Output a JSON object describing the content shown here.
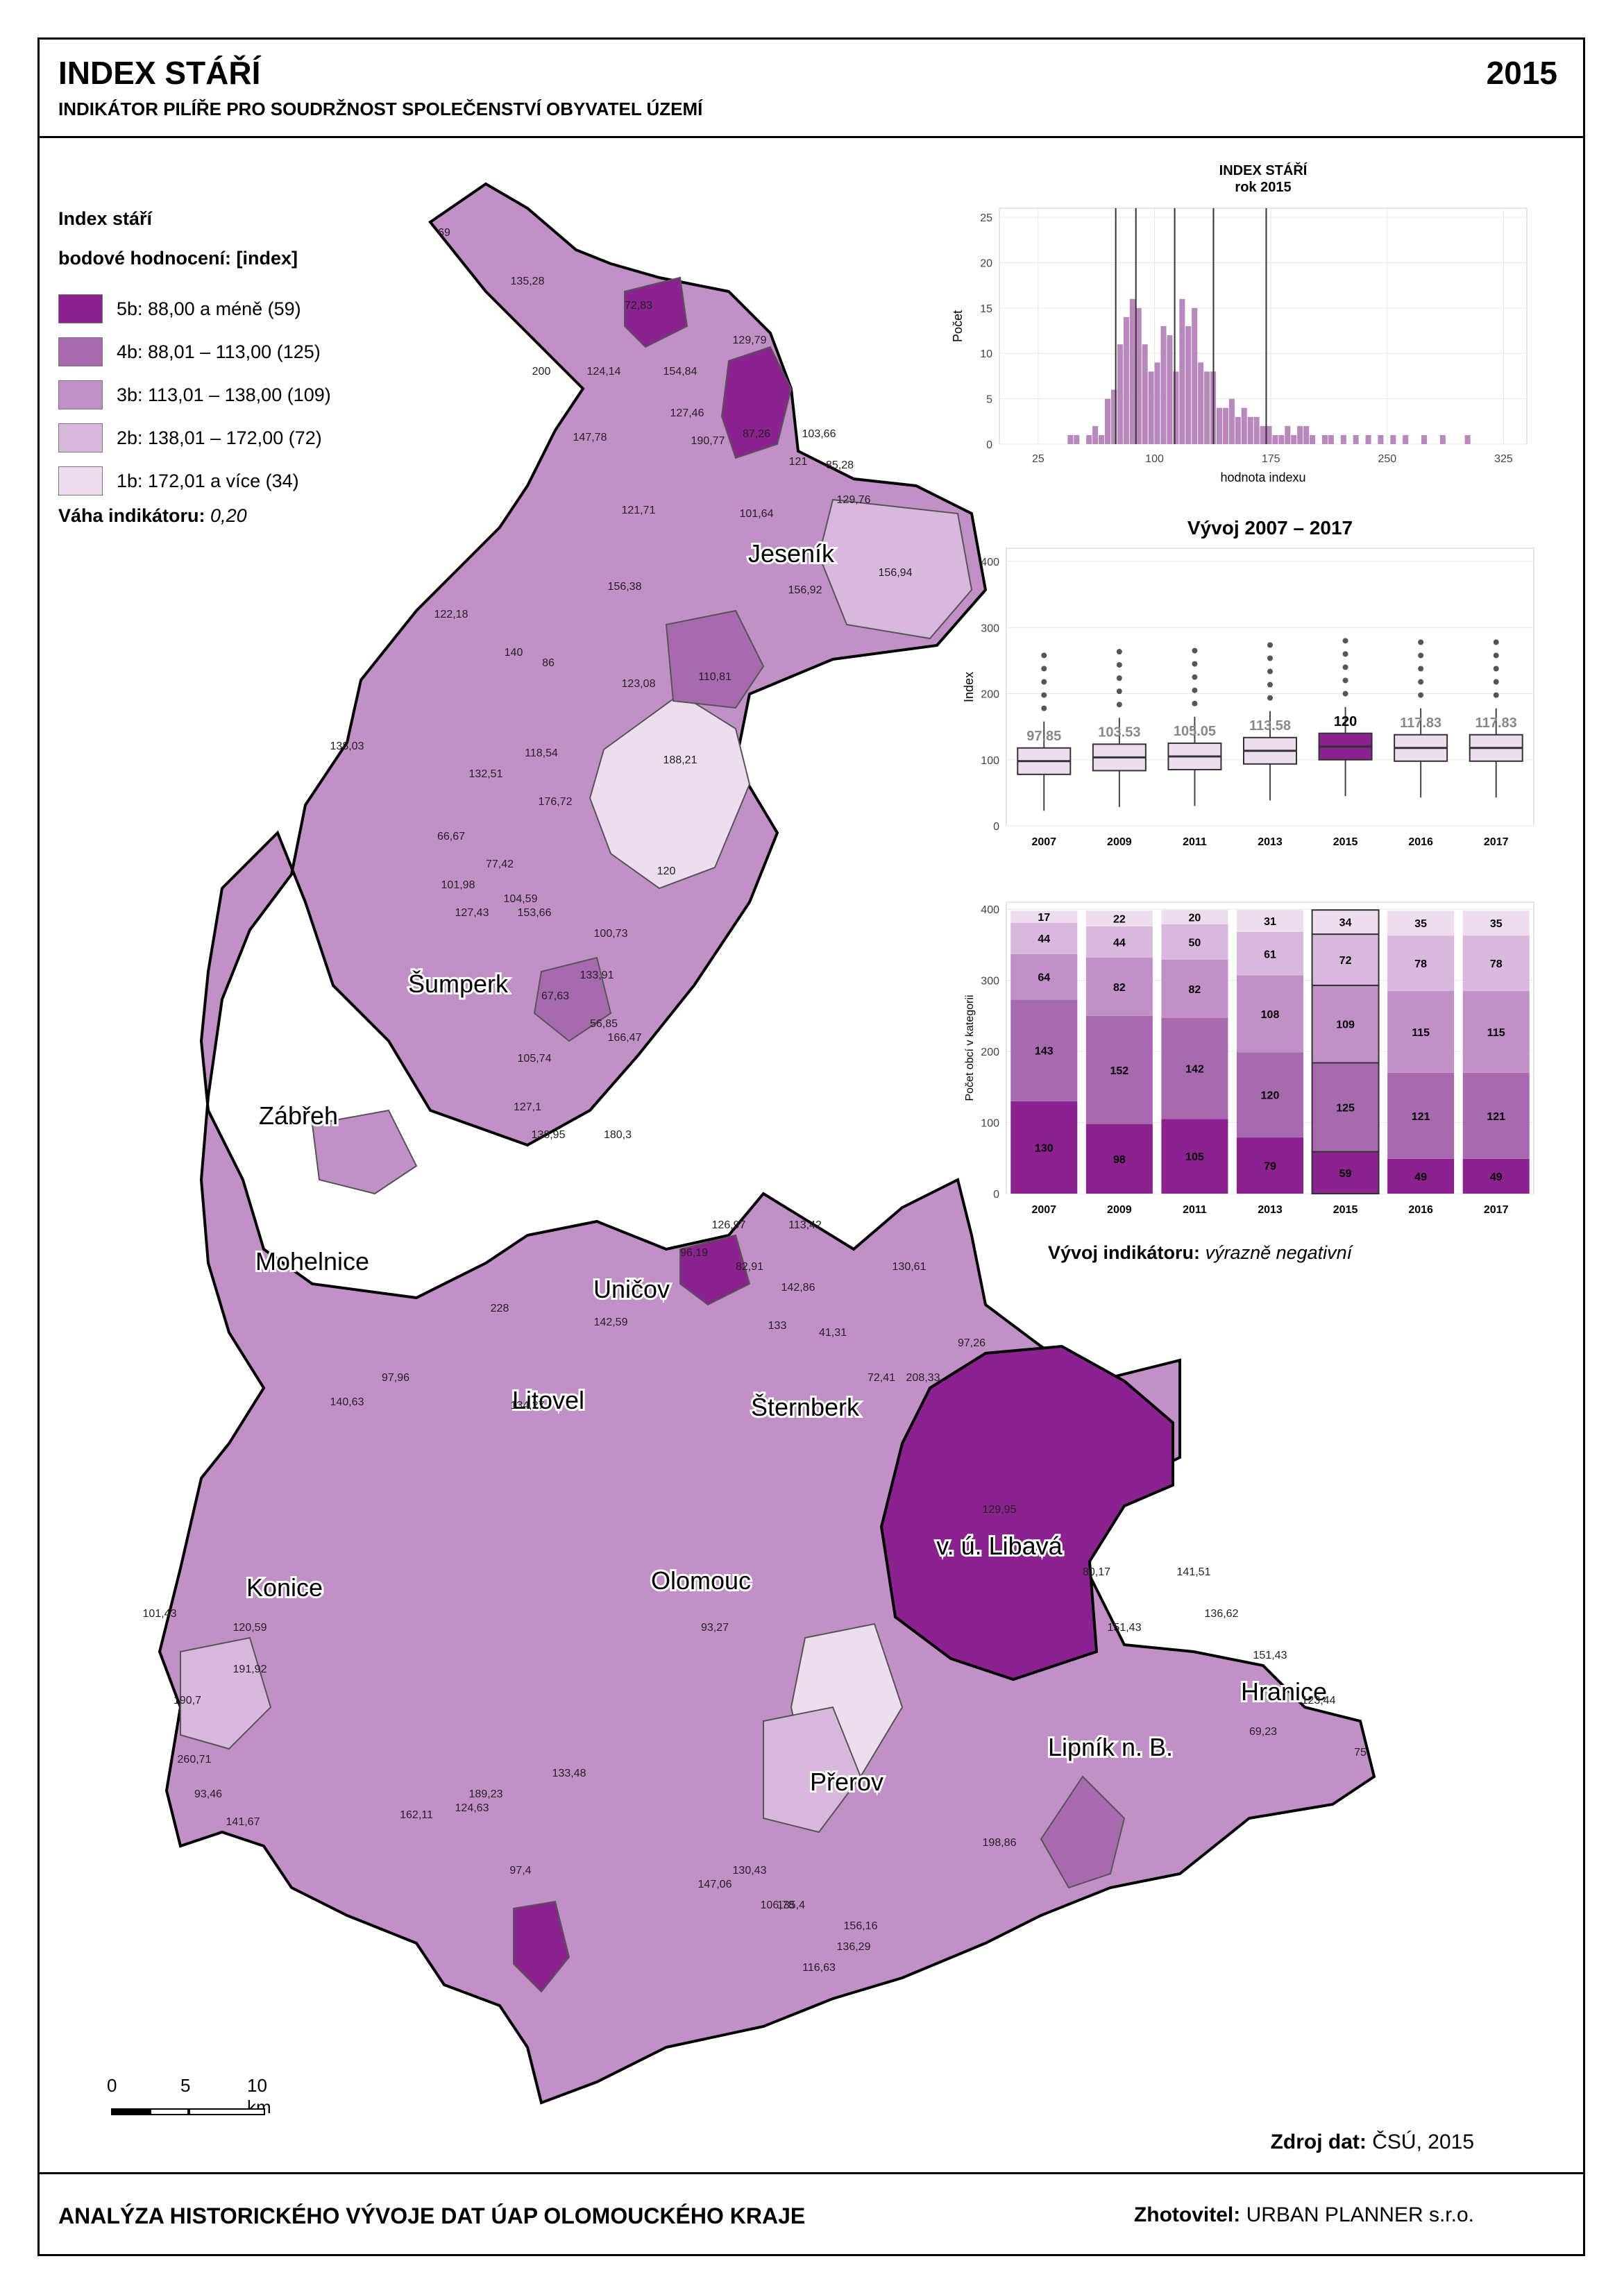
{
  "header": {
    "title": "INDEX STÁŘÍ",
    "year": "2015",
    "subtitle": "INDIKÁTOR PILÍŘE PRO SOUDRŽNOST SPOLEČENSTVÍ OBYVATEL ÚZEMÍ"
  },
  "legend": {
    "title": "Index stáří",
    "subtitle": "bodové hodnocení: [index]",
    "items": [
      {
        "label": "5b: 88,00 a méně (59)",
        "color": "#8b2290"
      },
      {
        "label": "4b: 88,01 – 113,00 (125)",
        "color": "#a86aaf"
      },
      {
        "label": "3b: 113,01 – 138,00 (109)",
        "color": "#c190c6"
      },
      {
        "label": "2b: 138,01 – 172,00 (72)",
        "color": "#d8b8dc"
      },
      {
        "label": "1b: 172,01 a více (34)",
        "color": "#eedcef"
      }
    ],
    "weight_label": "Váha indikátoru:",
    "weight_value": "0,20"
  },
  "map": {
    "town_labels": [
      "Jeseník",
      "Šumperk",
      "Zábřeh",
      "Mohelnice",
      "Uničov",
      "Litovel",
      "Šternberk",
      "Olomouc",
      "v. ú. Libavá",
      "Konice",
      "Přerov",
      "Lipník n. B.",
      "Hranice"
    ],
    "value_labels": [
      "69",
      "135,28",
      "72,83",
      "200",
      "124,14",
      "154,84",
      "129,79",
      "147,78",
      "127,46",
      "190,77",
      "87,26",
      "103,66",
      "121",
      "85,28",
      "129,76",
      "121,71",
      "101,64",
      "156,38",
      "156,92",
      "156,94",
      "122,18",
      "86",
      "140",
      "123,08",
      "110,81",
      "138,03",
      "118,54",
      "188,21",
      "132,51",
      "176,72",
      "120",
      "66,67",
      "77,42",
      "101,98",
      "104,59",
      "127,43",
      "153,66",
      "100,73",
      "133,91",
      "67,63",
      "56,85",
      "166,47",
      "105,74",
      "127,1",
      "138,95",
      "180,3",
      "126,97",
      "113,42",
      "96,19",
      "82,91",
      "142,86",
      "130,61",
      "97,26",
      "228",
      "142,59",
      "133",
      "41,31",
      "72,41",
      "208,33",
      "97,96",
      "140,63",
      "134,27",
      "129,95",
      "80,17",
      "141,51",
      "136,62",
      "151,43",
      "93,27",
      "123,44",
      "69,23",
      "75",
      "101,43",
      "120,59",
      "191,92",
      "190,7",
      "260,71",
      "93,46",
      "141,67",
      "162,11",
      "124,63",
      "189,23",
      "133,48",
      "97,4",
      "136,29",
      "116,63",
      "147,06",
      "106,78",
      "156,16",
      "135,4",
      "130,43",
      "198,86",
      "151,43"
    ],
    "scale": {
      "labels": [
        "0",
        "5",
        "10 km"
      ]
    }
  },
  "histogram": {
    "title": "INDEX STÁŘÍ",
    "subtitle": "rok 2015",
    "xlabel": "hodnota indexu",
    "ylabel": "Počet",
    "x_ticks": [
      "25",
      "100",
      "175",
      "250",
      "325"
    ],
    "y_ticks": [
      "0",
      "5",
      "10",
      "15",
      "20",
      "25"
    ],
    "bar_color": "#b988bd",
    "chart_data": {
      "type": "bar",
      "bin_start": [
        44,
        48,
        56,
        60,
        64,
        68,
        72,
        76,
        80,
        84,
        88,
        92,
        96,
        100,
        104,
        108,
        112,
        116,
        120,
        124,
        128,
        132,
        136,
        140,
        144,
        148,
        152,
        156,
        160,
        164,
        168,
        172,
        176,
        180,
        184,
        188,
        192,
        196,
        200,
        208,
        212,
        220,
        228,
        236,
        244,
        252,
        260,
        272,
        284,
        300
      ],
      "counts": [
        1,
        1,
        1,
        2,
        1,
        5,
        6,
        11,
        14,
        16,
        15,
        11,
        8,
        9,
        13,
        12,
        8,
        16,
        13,
        15,
        9,
        8,
        8,
        4,
        4,
        5,
        3,
        4,
        3,
        3,
        2,
        2,
        1,
        1,
        2,
        1,
        2,
        2,
        1,
        1,
        1,
        1,
        1,
        1,
        1,
        1,
        1,
        1,
        1,
        1
      ],
      "xlim": [
        0,
        340
      ],
      "ylim": [
        0,
        26
      ],
      "vlines": [
        75,
        88,
        113,
        138,
        172
      ]
    }
  },
  "boxplot": {
    "title": "Vývoj 2007 – 2017",
    "ylabel": "Index",
    "y_ticks": [
      "0",
      "100",
      "200",
      "300",
      "400"
    ],
    "chart_data": {
      "type": "box",
      "categories": [
        "2007",
        "2009",
        "2011",
        "2013",
        "2015",
        "2016",
        "2017"
      ],
      "medians": [
        97.85,
        103.53,
        105.05,
        113.58,
        120,
        117.83,
        117.83
      ],
      "median_labels": [
        "97.85",
        "103.53",
        "105.05",
        "113.58",
        "120",
        "117.83",
        "117.83"
      ],
      "ylim": [
        0,
        420
      ]
    }
  },
  "stacked": {
    "ylabel": "Počet obcí v kategorii",
    "y_ticks": [
      "0",
      "100",
      "200",
      "300",
      "400"
    ],
    "chart_data": {
      "type": "bar",
      "categories": [
        "2007",
        "2009",
        "2011",
        "2013",
        "2015",
        "2016",
        "2017"
      ],
      "series": [
        {
          "values": [
            130,
            98,
            105,
            79,
            59,
            49,
            49
          ],
          "color": "#8b2290"
        },
        {
          "values": [
            143,
            152,
            142,
            120,
            125,
            121,
            121
          ],
          "color": "#a86aaf"
        },
        {
          "values": [
            64,
            82,
            82,
            108,
            109,
            115,
            115
          ],
          "color": "#c190c6"
        },
        {
          "values": [
            44,
            44,
            50,
            61,
            72,
            78,
            78
          ],
          "color": "#d8b8dc"
        },
        {
          "values": [
            17,
            22,
            20,
            31,
            34,
            35,
            35
          ],
          "color": "#eedcef"
        }
      ],
      "ylim": [
        0,
        410
      ]
    }
  },
  "trend": {
    "label": "Vývoj indikátoru:",
    "value": "výrazně negativní"
  },
  "source": {
    "label": "Zdroj dat:",
    "value": "ČSÚ, 2015"
  },
  "footer": {
    "left": "ANALÝZA HISTORICKÉHO VÝVOJE DAT ÚAP OLOMOUCKÉHO KRAJE",
    "right_label": "Zhotovitel:",
    "right_value": "URBAN PLANNER s.r.o."
  }
}
